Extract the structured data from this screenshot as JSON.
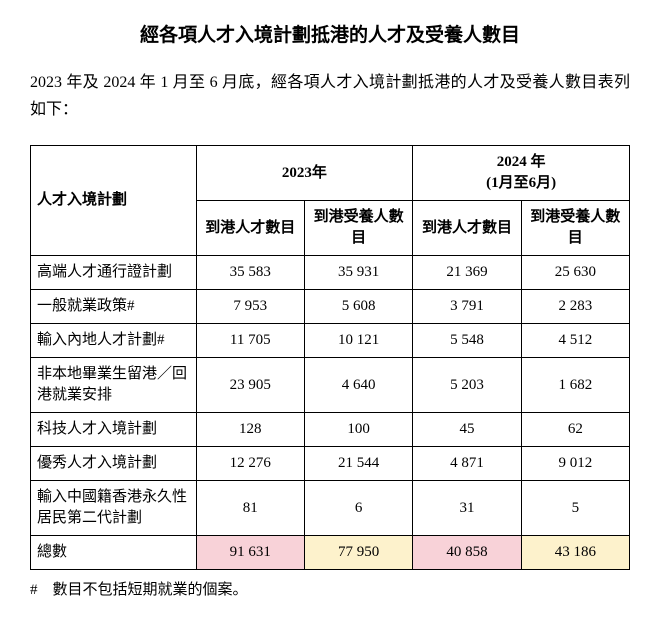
{
  "title": "經各項人才入境計劃抵港的人才及受養人數目",
  "intro": "2023 年及 2024 年 1 月至 6 月底，經各項人才入境計劃抵港的人才及受養人數目表列如下：",
  "table": {
    "header_scheme": "人才入境計劃",
    "header_year_2023": "2023年",
    "header_year_2024_line1": "2024 年",
    "header_year_2024_line2": "(1月至6月)",
    "sub_talent_2023": "到港人才數目",
    "sub_dependant_2023": "到港受養人數目",
    "sub_talent_2024": "到港人才數目",
    "sub_dependant_2024": "到港受養人數目",
    "rows": [
      {
        "label": "高端人才通行證計劃",
        "t23": "35 583",
        "d23": "35 931",
        "t24": "21 369",
        "d24": "25 630"
      },
      {
        "label": "一般就業政策#",
        "t23": "7 953",
        "d23": "5 608",
        "t24": "3 791",
        "d24": "2 283"
      },
      {
        "label": "輸入內地人才計劃#",
        "t23": "11 705",
        "d23": "10 121",
        "t24": "5 548",
        "d24": "4 512"
      },
      {
        "label": "非本地畢業生留港／回港就業安排",
        "t23": "23 905",
        "d23": "4 640",
        "t24": "5 203",
        "d24": "1 682"
      },
      {
        "label": "科技人才入境計劃",
        "t23": "128",
        "d23": "100",
        "t24": "45",
        "d24": "62"
      },
      {
        "label": "優秀人才入境計劃",
        "t23": "12 276",
        "d23": "21 544",
        "t24": "4 871",
        "d24": "9 012"
      },
      {
        "label": "輸入中國籍香港永久性居民第二代計劃",
        "t23": "81",
        "d23": "6",
        "t24": "31",
        "d24": "5"
      }
    ],
    "total_label": "總數",
    "total": {
      "t23": "91 631",
      "d23": "77 950",
      "t24": "40 858",
      "d24": "43 186"
    },
    "highlight_colors": {
      "pink": "#f8d2d8",
      "yellow": "#fdf2cc"
    }
  },
  "footnote": "#　數目不包括短期就業的個案。"
}
